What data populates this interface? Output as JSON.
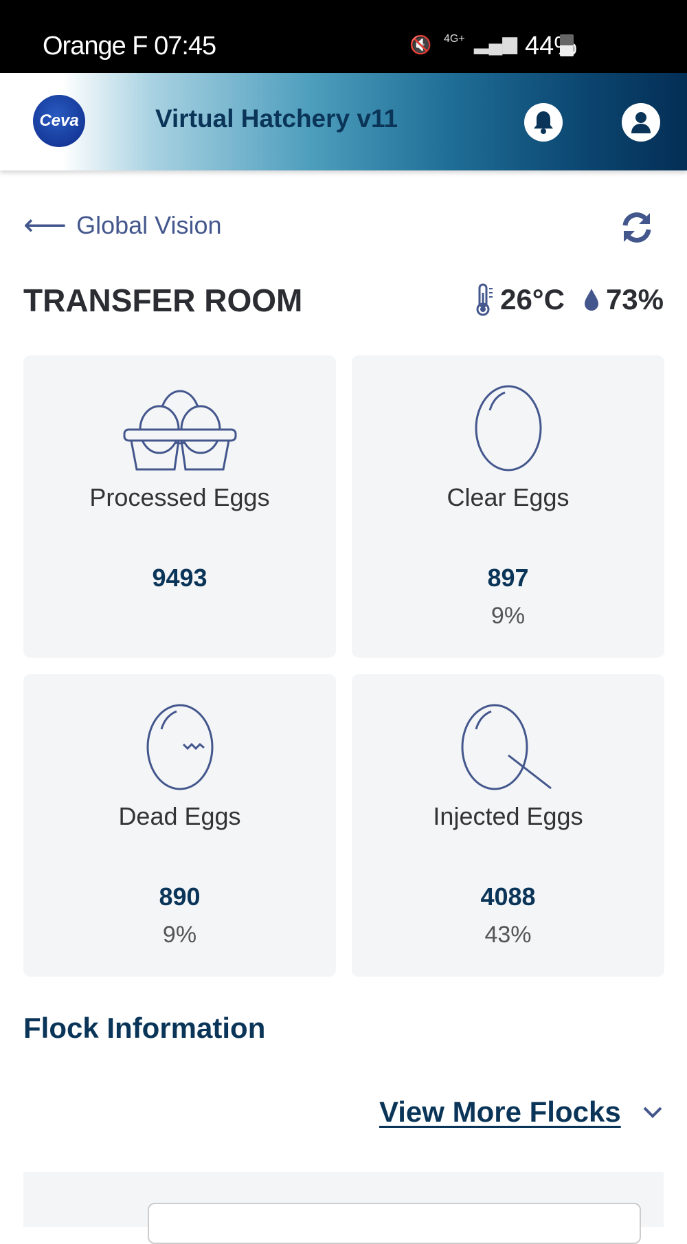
{
  "status_bar": {
    "carrier": "Orange F",
    "time": "07:45",
    "network": "4G+",
    "battery": "44%"
  },
  "header": {
    "title": "Virtual Hatchery v11",
    "logo_text": "Ceva",
    "brand_color": "#0a3558"
  },
  "nav": {
    "back_label": "Global Vision"
  },
  "room": {
    "name": "TRANSFER ROOM",
    "temperature": "26°C",
    "humidity": "73%"
  },
  "cards": [
    {
      "label": "Processed Eggs",
      "value": "9493",
      "percent": "",
      "icon": "egg-tray-icon"
    },
    {
      "label": "Clear Eggs",
      "value": "897",
      "percent": "9%",
      "icon": "egg-icon"
    },
    {
      "label": "Dead Eggs",
      "value": "890",
      "percent": "9%",
      "icon": "cracked-egg-icon"
    },
    {
      "label": "Injected Eggs",
      "value": "4088",
      "percent": "43%",
      "icon": "injected-egg-icon"
    }
  ],
  "flock": {
    "title": "Flock Information",
    "view_more_label": "View More Flocks"
  }
}
